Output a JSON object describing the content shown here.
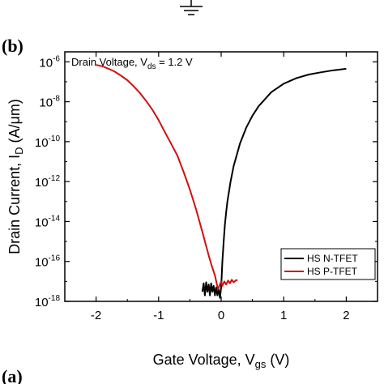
{
  "panel_labels": {
    "top": "(b)",
    "bottom": "(a)"
  },
  "chart_data": {
    "type": "line",
    "xlabel": {
      "main": "Gate Voltage, V",
      "sub": "gs",
      "tail": " (V)"
    },
    "ylabel": {
      "main": "Drain Current, I",
      "sub": "D",
      "tail": " (A/μm)"
    },
    "annotation": {
      "main": "Drain Voltage, V",
      "sub": "ds",
      "tail": " = 1.2 V"
    },
    "x_range": [
      -2.5,
      2.5
    ],
    "y_scale": "log",
    "y_range_exp": [
      -18,
      -5.5
    ],
    "x_ticks": [
      -2,
      -1,
      0,
      1,
      2
    ],
    "y_tick_exps": [
      -18,
      -16,
      -14,
      -12,
      -10,
      -8,
      -6
    ],
    "grid": false,
    "legend_position": "bottom-right",
    "series": [
      {
        "name": "HS N-TFET",
        "color": "#000000",
        "x": [
          -0.3,
          -0.28,
          -0.26,
          -0.24,
          -0.22,
          -0.2,
          -0.18,
          -0.16,
          -0.14,
          -0.12,
          -0.1,
          -0.08,
          -0.06,
          -0.04,
          -0.02,
          0.0,
          0.02,
          0.04,
          0.06,
          0.08,
          0.1,
          0.15,
          0.2,
          0.3,
          0.4,
          0.5,
          0.6,
          0.8,
          1.0,
          1.2,
          1.4,
          1.6,
          1.8,
          2.0
        ],
        "y": [
          3e-18,
          8e-18,
          2e-18,
          9e-18,
          3e-18,
          7e-18,
          2e-18,
          8e-18,
          3e-18,
          6e-18,
          2e-18,
          5e-18,
          2e-18,
          4e-18,
          1.5e-18,
          5e-18,
          1e-16,
          1e-15,
          7e-15,
          3e-14,
          1e-13,
          1e-12,
          6e-12,
          8e-11,
          5e-10,
          2e-09,
          6e-09,
          3e-08,
          8e-08,
          1.5e-07,
          2.3e-07,
          3e-07,
          3.8e-07,
          4.5e-07
        ]
      },
      {
        "name": "HS P-TFET",
        "color": "#d01010",
        "x": [
          -2.0,
          -1.9,
          -1.8,
          -1.7,
          -1.6,
          -1.5,
          -1.4,
          -1.3,
          -1.2,
          -1.1,
          -1.0,
          -0.9,
          -0.8,
          -0.7,
          -0.6,
          -0.5,
          -0.4,
          -0.3,
          -0.2,
          -0.15,
          -0.1,
          -0.05,
          0.0,
          0.02,
          0.05,
          0.08,
          0.11,
          0.14,
          0.17,
          0.2,
          0.23,
          0.26
        ],
        "y": [
          7e-07,
          6e-07,
          4.5e-07,
          3.2e-07,
          2e-07,
          1.2e-07,
          6e-08,
          2.8e-08,
          1.1e-08,
          4e-09,
          1.2e-09,
          3e-10,
          8e-11,
          2e-11,
          3e-12,
          4e-13,
          4e-14,
          3e-15,
          2e-16,
          6e-17,
          2e-17,
          4e-18,
          1e-17,
          6e-18,
          1e-17,
          7e-18,
          1.1e-17,
          8e-18,
          1.2e-17,
          9e-18,
          1.1e-17,
          1.2e-17
        ]
      }
    ]
  }
}
